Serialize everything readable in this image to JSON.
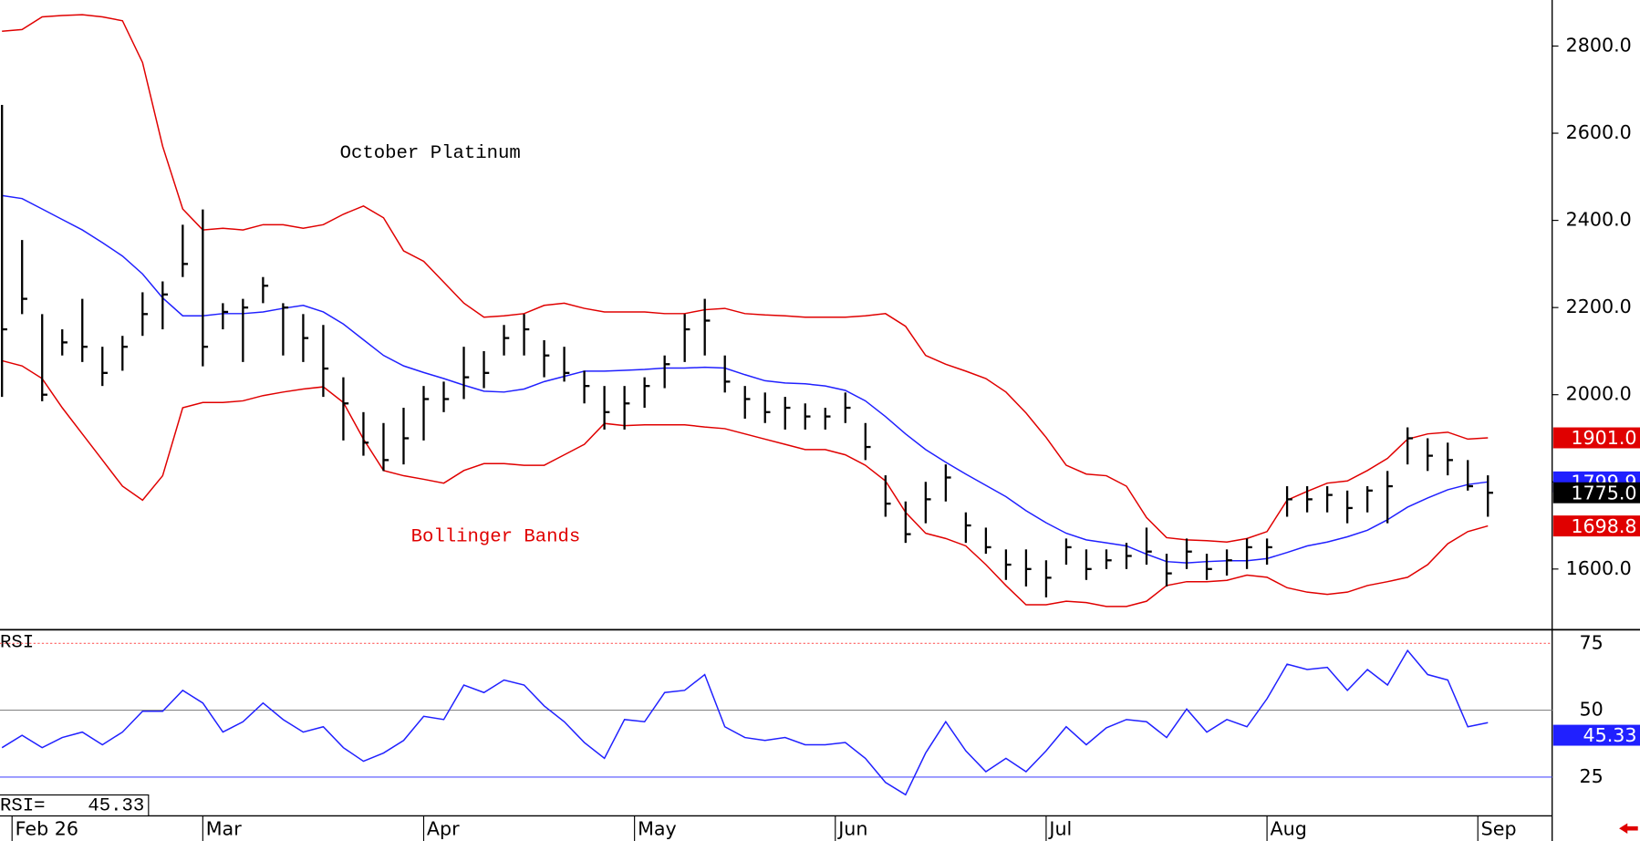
{
  "chart_data": [
    {
      "type": "ohlc",
      "title": "October Platinum",
      "annotation": "Bollinger Bands",
      "annotation_color": "#e00000",
      "x": [
        0,
        2,
        4,
        6,
        8,
        10,
        12,
        14,
        16,
        18,
        20,
        22,
        24,
        26,
        28,
        30,
        32,
        34,
        36,
        38,
        40,
        42,
        44,
        46,
        48,
        50,
        52,
        54,
        56,
        58,
        60,
        62,
        64,
        66,
        68,
        70,
        72,
        74,
        76,
        78,
        80,
        82,
        84,
        86,
        88,
        90,
        92,
        94,
        96,
        98,
        100,
        102,
        104,
        106,
        108,
        110,
        112,
        114,
        116,
        118,
        120,
        122,
        124,
        126,
        128,
        130,
        132,
        134,
        136,
        138,
        140,
        142,
        144,
        146,
        148
      ],
      "xlim": [
        -0.2,
        154.4
      ],
      "ylim": [
        1460.8,
        2905.6
      ],
      "yticks": [
        {
          "value": 1600,
          "label": "1600.0"
        },
        {
          "value": 1800,
          "label": "1800.0"
        },
        {
          "value": 2000,
          "label": "2000.0"
        },
        {
          "value": 2200,
          "label": "2200.0"
        },
        {
          "value": 2400,
          "label": "2400.0"
        },
        {
          "value": 2600,
          "label": "2600.0"
        },
        {
          "value": 2800,
          "label": "2800.0"
        }
      ],
      "ohlc": {
        "color": "#000000",
        "high": [
          2665,
          2355,
          2185,
          2150,
          2220,
          2110,
          2135,
          2235,
          2260,
          2390,
          2425,
          2210,
          2220,
          2270,
          2210,
          2185,
          2160,
          2040,
          1960,
          1935,
          1970,
          2020,
          2030,
          2110,
          2100,
          2160,
          2185,
          2125,
          2110,
          2055,
          2020,
          2020,
          2040,
          2090,
          2185,
          2220,
          2090,
          2020,
          2005,
          1995,
          1980,
          1970,
          2005,
          1935,
          1815,
          1755,
          1800,
          1840,
          1730,
          1695,
          1645,
          1645,
          1620,
          1670,
          1645,
          1645,
          1660,
          1695,
          1635,
          1670,
          1635,
          1645,
          1670,
          1670,
          1790,
          1790,
          1790,
          1780,
          1790,
          1825,
          1925,
          1900,
          1890,
          1850,
          1815
        ],
        "low": [
          1995,
          2185,
          1985,
          2090,
          2075,
          2020,
          2055,
          2135,
          2150,
          2270,
          2065,
          2150,
          2075,
          2210,
          2090,
          2075,
          1995,
          1895,
          1860,
          1825,
          1840,
          1895,
          1960,
          1990,
          2015,
          2090,
          2090,
          2040,
          2030,
          1980,
          1920,
          1920,
          1970,
          2015,
          2075,
          2090,
          2005,
          1945,
          1935,
          1920,
          1920,
          1920,
          1935,
          1850,
          1720,
          1660,
          1705,
          1755,
          1660,
          1635,
          1575,
          1560,
          1535,
          1610,
          1575,
          1600,
          1600,
          1610,
          1560,
          1600,
          1575,
          1585,
          1600,
          1610,
          1720,
          1730,
          1730,
          1705,
          1730,
          1705,
          1840,
          1825,
          1815,
          1780,
          1720
        ],
        "close": [
          2150,
          2220,
          2000,
          2120,
          2110,
          2050,
          2110,
          2185,
          2230,
          2300,
          2110,
          2190,
          2200,
          2250,
          2200,
          2130,
          2060,
          1980,
          1890,
          1850,
          1900,
          1990,
          1990,
          2040,
          2050,
          2130,
          2150,
          2090,
          2050,
          2020,
          1960,
          1980,
          2020,
          2070,
          2150,
          2170,
          2030,
          1990,
          1960,
          1970,
          1950,
          1950,
          1970,
          1880,
          1750,
          1680,
          1760,
          1810,
          1700,
          1650,
          1610,
          1600,
          1580,
          1650,
          1600,
          1620,
          1630,
          1640,
          1590,
          1640,
          1600,
          1620,
          1650,
          1650,
          1760,
          1760,
          1770,
          1740,
          1780,
          1790,
          1900,
          1860,
          1850,
          1790,
          1775
        ],
        "last_label": "1775.0"
      },
      "bands": [
        {
          "color": "#e00000",
          "last_label": "1901.0",
          "values": [
            2834,
            2838,
            2867,
            2870,
            2872,
            2867,
            2858,
            2762,
            2570,
            2426,
            2378,
            2382,
            2378,
            2390,
            2390,
            2382,
            2390,
            2414,
            2433,
            2406,
            2330,
            2306,
            2258,
            2210,
            2178,
            2181,
            2186,
            2205,
            2210,
            2198,
            2190,
            2190,
            2190,
            2186,
            2186,
            2195,
            2198,
            2186,
            2183,
            2181,
            2178,
            2178,
            2178,
            2181,
            2186,
            2157,
            2090,
            2070,
            2054,
            2037,
            2006,
            1958,
            1902,
            1838,
            1818,
            1814,
            1790,
            1718,
            1672,
            1667,
            1665,
            1662,
            1670,
            1686,
            1758,
            1778,
            1797,
            1802,
            1826,
            1854,
            1898,
            1910,
            1914,
            1898,
            1901
          ]
        },
        {
          "color": "#2020ff",
          "last_label": "1799.9",
          "values": [
            2457,
            2450,
            2426,
            2402,
            2378,
            2349,
            2318,
            2277,
            2222,
            2181,
            2181,
            2186,
            2186,
            2190,
            2198,
            2205,
            2190,
            2162,
            2126,
            2090,
            2066,
            2051,
            2037,
            2022,
            2008,
            2006,
            2013,
            2030,
            2042,
            2054,
            2054,
            2056,
            2058,
            2061,
            2061,
            2063,
            2061,
            2046,
            2032,
            2027,
            2025,
            2020,
            2010,
            1986,
            1950,
            1910,
            1874,
            1845,
            1818,
            1792,
            1766,
            1734,
            1706,
            1682,
            1667,
            1660,
            1653,
            1634,
            1617,
            1614,
            1617,
            1619,
            1619,
            1624,
            1638,
            1653,
            1662,
            1674,
            1689,
            1713,
            1742,
            1763,
            1782,
            1794,
            1799.9
          ]
        },
        {
          "color": "#e00000",
          "last_label": "1698.8",
          "values": [
            2078,
            2066,
            2037,
            1970,
            1910,
            1850,
            1790,
            1758,
            1814,
            1970,
            1982,
            1982,
            1986,
            1998,
            2006,
            2013,
            2018,
            1982,
            1898,
            1826,
            1814,
            1806,
            1797,
            1826,
            1842,
            1842,
            1838,
            1838,
            1862,
            1886,
            1934,
            1929,
            1931,
            1931,
            1931,
            1926,
            1922,
            1910,
            1898,
            1886,
            1874,
            1874,
            1862,
            1838,
            1802,
            1730,
            1682,
            1670,
            1653,
            1610,
            1562,
            1518,
            1518,
            1526,
            1523,
            1514,
            1514,
            1526,
            1562,
            1571,
            1571,
            1574,
            1586,
            1581,
            1557,
            1547,
            1542,
            1547,
            1562,
            1571,
            1581,
            1610,
            1658,
            1686,
            1698.8
          ]
        }
      ]
    },
    {
      "type": "line",
      "readout_label": "RSI=",
      "x": [
        0,
        2,
        4,
        6,
        8,
        10,
        12,
        14,
        16,
        18,
        20,
        22,
        24,
        26,
        28,
        30,
        32,
        34,
        36,
        38,
        40,
        42,
        44,
        46,
        48,
        50,
        52,
        54,
        56,
        58,
        60,
        62,
        64,
        66,
        68,
        70,
        72,
        74,
        76,
        78,
        80,
        82,
        84,
        86,
        88,
        90,
        92,
        94,
        96,
        98,
        100,
        102,
        104,
        106,
        108,
        110,
        112,
        114,
        116,
        118,
        120,
        122,
        124,
        126,
        128,
        130,
        132,
        134,
        136,
        138,
        140,
        142,
        144,
        146,
        148
      ],
      "xlim": [
        -0.2,
        154.4
      ],
      "xticks": [
        {
          "value": 1,
          "label": "Feb 26"
        },
        {
          "value": 20,
          "label": "Mar"
        },
        {
          "value": 42,
          "label": "Apr"
        },
        {
          "value": 63,
          "label": "May"
        },
        {
          "value": 83,
          "label": "Jun"
        },
        {
          "value": 104,
          "label": "Jul"
        },
        {
          "value": 126,
          "label": "Aug"
        },
        {
          "value": 147,
          "label": "Sep"
        }
      ],
      "ylim": [
        10.5,
        79.7
      ],
      "yticks": [
        25,
        50,
        75
      ],
      "ytick_colors": [
        "#5050ff",
        "#888888",
        "#ff6060"
      ],
      "series": [
        {
          "name": "RSI",
          "color": "#2020ff",
          "last_label": "45.33",
          "values": [
            36,
            40.6,
            36,
            39.8,
            41.8,
            37.1,
            41.8,
            49.6,
            49.6,
            57.4,
            52.7,
            41.8,
            45.7,
            52.7,
            46.5,
            41.8,
            43.8,
            36,
            30.9,
            34,
            38.7,
            47.7,
            46.5,
            59.4,
            56.6,
            61.3,
            59.4,
            51.6,
            45.7,
            37.9,
            32,
            46.5,
            45.7,
            56.6,
            57.4,
            63.3,
            43.8,
            39.8,
            38.7,
            39.8,
            37.1,
            37.1,
            37.9,
            32,
            23,
            18.4,
            34,
            45.7,
            34.8,
            27,
            32,
            27,
            34.8,
            43.8,
            37.1,
            43.4,
            46.5,
            45.7,
            39.8,
            50.4,
            41.8,
            46.5,
            43.8,
            54.3,
            67.2,
            65.2,
            66,
            57.4,
            65.2,
            59.4,
            72.3,
            63.3,
            61.3,
            43.8,
            45.33
          ]
        }
      ]
    }
  ]
}
